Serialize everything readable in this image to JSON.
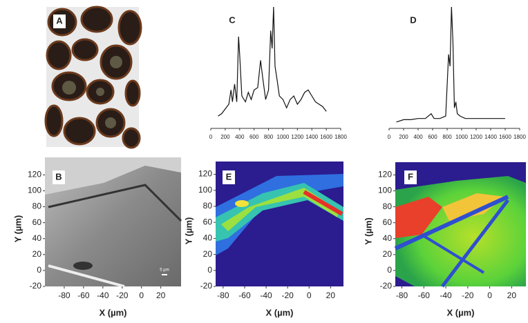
{
  "chart_data": [
    {
      "type": "image",
      "label": "A"
    },
    {
      "type": "line",
      "label": "C",
      "color": "#111",
      "x": [
        100,
        150,
        200,
        250,
        280,
        300,
        330,
        360,
        385,
        400,
        430,
        480,
        520,
        560,
        600,
        650,
        690,
        720,
        760,
        800,
        830,
        850,
        870,
        890,
        920,
        950,
        1000,
        1050,
        1100,
        1150,
        1200,
        1250,
        1300,
        1350,
        1400,
        1450,
        1500,
        1550,
        1600
      ],
      "values": [
        8,
        10,
        14,
        18,
        30,
        20,
        35,
        20,
        75,
        60,
        25,
        20,
        28,
        22,
        30,
        32,
        55,
        40,
        22,
        30,
        80,
        65,
        100,
        50,
        38,
        25,
        22,
        15,
        22,
        25,
        18,
        22,
        28,
        30,
        25,
        20,
        18,
        16,
        12
      ],
      "xlim": [
        0,
        1800
      ],
      "ylim": [
        0,
        100
      ],
      "xticks": [
        0,
        200,
        400,
        600,
        800,
        1000,
        1200,
        1400,
        1600,
        1800
      ]
    },
    {
      "type": "line",
      "label": "D",
      "color": "#111",
      "x": [
        100,
        200,
        300,
        400,
        500,
        580,
        620,
        700,
        780,
        820,
        840,
        860,
        880,
        900,
        920,
        940,
        980,
        1050,
        1200,
        1400,
        1600
      ],
      "values": [
        3,
        5,
        5,
        6,
        6,
        10,
        6,
        6,
        8,
        60,
        50,
        100,
        70,
        15,
        20,
        10,
        8,
        6,
        6,
        6,
        6
      ],
      "xlim": [
        0,
        1800
      ],
      "ylim": [
        0,
        100
      ],
      "xticks": [
        0,
        200,
        400,
        600,
        800,
        1000,
        1200,
        1400,
        1600,
        1800
      ]
    },
    {
      "type": "map",
      "label": "B",
      "xlabel": "X (µm)",
      "ylabel": "Y (µm)",
      "scalebar": "5 µm",
      "xlim": [
        -100,
        41
      ],
      "ylim": [
        -20,
        142
      ],
      "xticks": [
        -80,
        -60,
        -40,
        -20,
        0,
        20
      ],
      "yticks": [
        -20,
        0,
        20,
        40,
        60,
        80,
        100,
        120
      ]
    },
    {
      "type": "map",
      "label": "E",
      "xlabel": "X (µm)",
      "ylabel": "Y (µm)",
      "xlim": [
        -87,
        32
      ],
      "ylim": [
        -20,
        136
      ],
      "xticks": [
        -80,
        -60,
        -40,
        -20,
        0,
        20
      ],
      "yticks": [
        -20,
        0,
        20,
        40,
        60,
        80,
        100,
        120
      ]
    },
    {
      "type": "map",
      "label": "F",
      "xlabel": "X (µm)",
      "ylabel": "Y (µm)",
      "xlim": [
        -86,
        33
      ],
      "ylim": [
        -20,
        136
      ],
      "xticks": [
        -80,
        -60,
        -40,
        -20,
        0,
        20
      ],
      "yticks": [
        -20,
        0,
        20,
        40,
        60,
        80,
        100,
        120
      ]
    }
  ]
}
